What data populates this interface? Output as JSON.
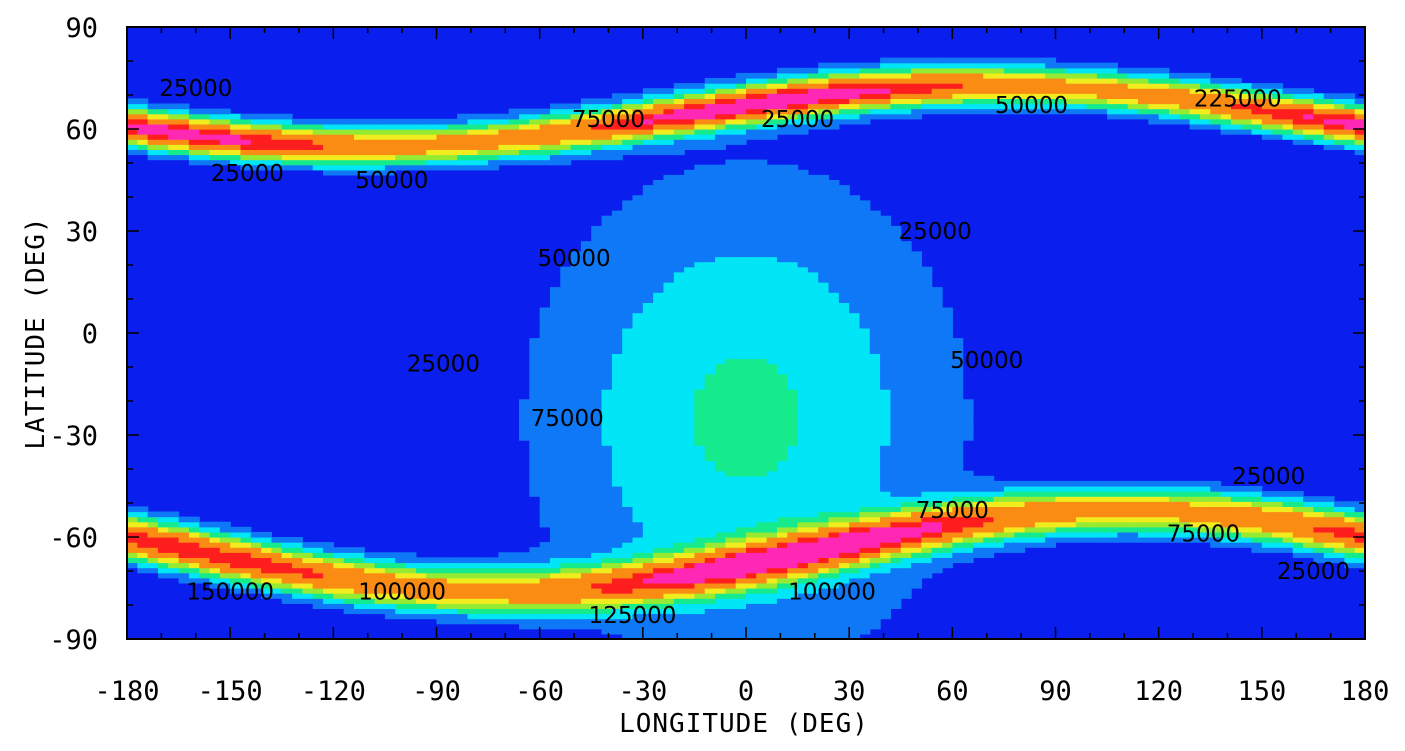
{
  "chart_data": {
    "type": "contour",
    "title": "",
    "xlabel": "LONGITUDE (DEG)",
    "ylabel": "LATITUDE (DEG)",
    "xlim": [
      -180,
      180
    ],
    "ylim": [
      -90,
      90
    ],
    "x_ticks": [
      "-180",
      "-150",
      "-120",
      "-90",
      "-60",
      "-30",
      "0",
      "30",
      "60",
      "90",
      "120",
      "150",
      "180"
    ],
    "y_ticks": [
      "90",
      "60",
      "30",
      "0",
      "-30",
      "-60",
      "-90"
    ],
    "contour_levels": [
      25000,
      50000,
      75000,
      100000,
      125000,
      150000,
      175000,
      200000,
      225000
    ],
    "fill_colors": {
      "lt_25000": "#0a1eee",
      "25000_50000": "#0f78f6",
      "50000_75000": "#00e6f6",
      "75000_100000": "#15eb8c",
      "100000_125000": "#96eb32",
      "125000_150000": "#f0ec1e",
      "150000_200000": "#fa8c14",
      "200000_225000": "#ff1e1e",
      "gt_225000": "#ff28b4"
    },
    "contour_labels": [
      {
        "text": "25000",
        "lon": -160,
        "lat": 72
      },
      {
        "text": "25000",
        "lon": -145,
        "lat": 47
      },
      {
        "text": "50000",
        "lon": -103,
        "lat": 45
      },
      {
        "text": "75000",
        "lon": -40,
        "lat": 63
      },
      {
        "text": "25000",
        "lon": 15,
        "lat": 63
      },
      {
        "text": "50000",
        "lon": 83,
        "lat": 67
      },
      {
        "text": "225000",
        "lon": 143,
        "lat": 69
      },
      {
        "text": "25000",
        "lon": 55,
        "lat": 30
      },
      {
        "text": "50000",
        "lon": -50,
        "lat": 22
      },
      {
        "text": "50000",
        "lon": 70,
        "lat": -8
      },
      {
        "text": "25000",
        "lon": -88,
        "lat": -9
      },
      {
        "text": "75000",
        "lon": -52,
        "lat": -25
      },
      {
        "text": "75000",
        "lon": 60,
        "lat": -52
      },
      {
        "text": "25000",
        "lon": 152,
        "lat": -42
      },
      {
        "text": "75000",
        "lon": 133,
        "lat": -59
      },
      {
        "text": "25000",
        "lon": 165,
        "lat": -70
      },
      {
        "text": "150000",
        "lon": -150,
        "lat": -76
      },
      {
        "text": "100000",
        "lon": -100,
        "lat": -76
      },
      {
        "text": "125000",
        "lon": -33,
        "lat": -83
      },
      {
        "text": "100000",
        "lon": 25,
        "lat": -76
      }
    ]
  }
}
